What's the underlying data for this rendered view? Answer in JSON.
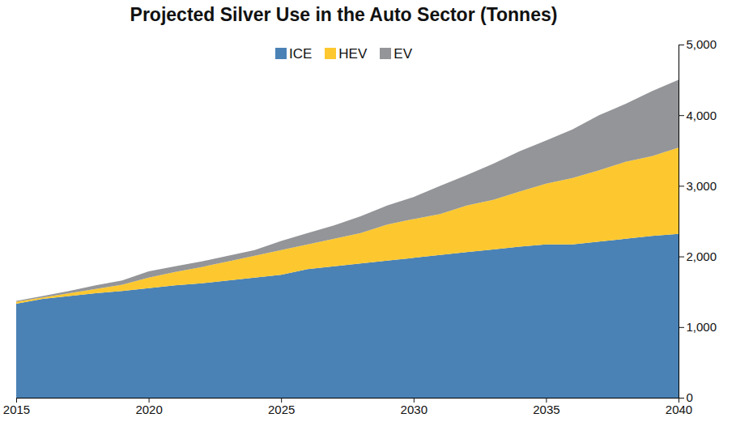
{
  "chart_data": {
    "type": "area",
    "title": "Projected Silver Use in the Auto Sector (Tonnes)",
    "stacked": true,
    "legend": "top",
    "x": [
      2015,
      2016,
      2017,
      2018,
      2019,
      2020,
      2021,
      2022,
      2023,
      2024,
      2025,
      2026,
      2027,
      2028,
      2029,
      2030,
      2031,
      2032,
      2033,
      2034,
      2035,
      2036,
      2037,
      2038,
      2039,
      2040
    ],
    "series": [
      {
        "name": "ICE",
        "color": "#4a82b6",
        "values": [
          1330,
          1400,
          1440,
          1480,
          1510,
          1550,
          1590,
          1620,
          1660,
          1700,
          1740,
          1820,
          1860,
          1900,
          1940,
          1980,
          2020,
          2060,
          2100,
          2140,
          2170,
          2170,
          2210,
          2250,
          2290,
          2320
        ]
      },
      {
        "name": "HEV",
        "color": "#fdc82f",
        "values": [
          30,
          20,
          40,
          60,
          90,
          150,
          190,
          230,
          270,
          310,
          350,
          350,
          390,
          430,
          510,
          550,
          580,
          660,
          700,
          780,
          860,
          940,
          1010,
          1090,
          1130,
          1220
        ]
      },
      {
        "name": "EV",
        "color": "#939598",
        "values": [
          10,
          20,
          30,
          50,
          60,
          90,
          80,
          80,
          80,
          80,
          130,
          160,
          190,
          240,
          270,
          310,
          400,
          430,
          510,
          570,
          610,
          690,
          780,
          820,
          920,
          960
        ]
      }
    ],
    "xlim": [
      2015,
      2040
    ],
    "xticks": [
      2015,
      2020,
      2025,
      2030,
      2035,
      2040
    ],
    "ylim": [
      0,
      5000
    ],
    "yticks": [
      0,
      {
        "value": 1000,
        "label": "1,000"
      },
      {
        "value": 2000,
        "label": "2,000"
      },
      {
        "value": 3000,
        "label": "3,000"
      },
      {
        "value": 4000,
        "label": "4,000"
      },
      {
        "value": 5000,
        "label": "5,000"
      }
    ],
    "grid": false
  }
}
